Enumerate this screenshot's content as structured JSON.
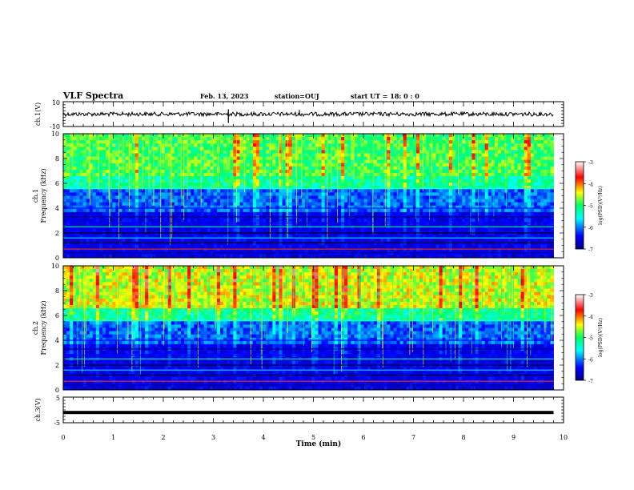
{
  "header": {
    "title": "VLF Spectra",
    "date": "Feb. 13, 2023",
    "station": "station=OUJ",
    "start": "start  UT =   18: 0  : 0"
  },
  "chart_data": [
    {
      "type": "line",
      "panel": "ch1-waveform",
      "ylabel": "ch.1(V)",
      "yticklabels": [
        "10",
        "-10"
      ],
      "ylim": [
        -10,
        10
      ],
      "xlim": [
        0,
        10
      ],
      "trace_level": 0,
      "color": "#000000"
    },
    {
      "type": "heatmap",
      "panel": "ch1-spectrogram",
      "ylabel": [
        "ch.1",
        "Frequency (kHz)"
      ],
      "yticks": [
        0,
        2,
        4,
        6,
        8,
        10
      ],
      "ylim": [
        0,
        10
      ],
      "xlim": [
        0,
        10
      ],
      "data_end_min": 9.8,
      "colorbar": {
        "label": "log(PSD)(V²/Hz)",
        "ticks": [
          "-3",
          "-4",
          "-5",
          "-6",
          "-7"
        ],
        "range": [
          -7,
          -3
        ]
      }
    },
    {
      "type": "heatmap",
      "panel": "ch2-spectrogram",
      "ylabel": [
        "ch.2",
        "Frequency (kHz)"
      ],
      "yticks": [
        0,
        2,
        4,
        6,
        8,
        10
      ],
      "ylim": [
        0,
        10
      ],
      "xlim": [
        0,
        10
      ],
      "data_end_min": 9.8,
      "colorbar": {
        "label": "log(PSD)(V²/Hz)",
        "ticks": [
          "-3",
          "-4",
          "-5",
          "-6",
          "-7"
        ],
        "range": [
          -7,
          -3
        ]
      }
    },
    {
      "type": "line",
      "panel": "ch3-waveform",
      "ylabel": "ch.3(V)",
      "yticklabels": [
        "5",
        "-5"
      ],
      "ylim": [
        -5,
        5
      ],
      "xlim": [
        0,
        10
      ],
      "trace_level": -1,
      "color": "#000000"
    }
  ],
  "xaxis": {
    "label": "Time (min)",
    "ticks": [
      "0",
      "1",
      "2",
      "3",
      "4",
      "5",
      "6",
      "7",
      "8",
      "9",
      "10"
    ]
  }
}
